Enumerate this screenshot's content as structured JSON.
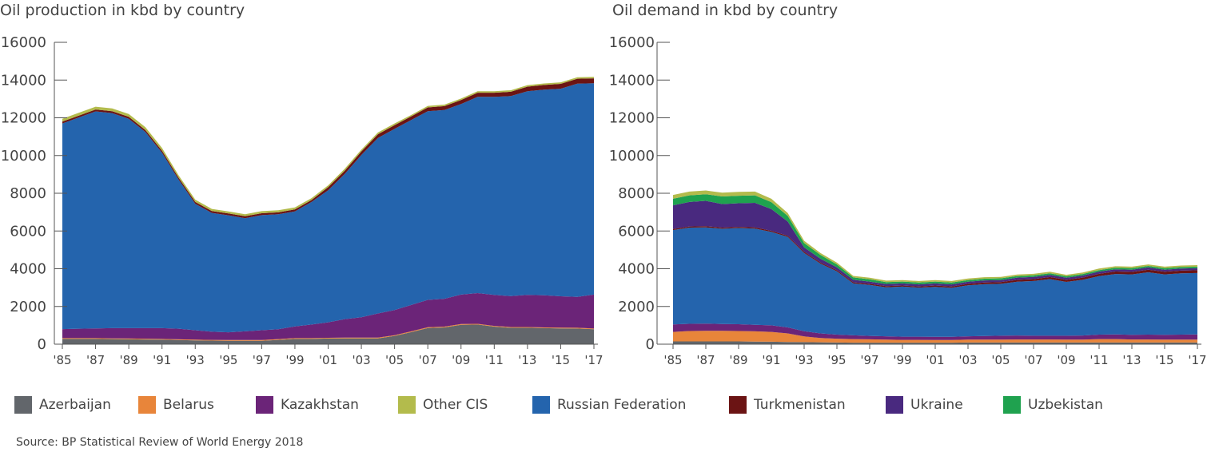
{
  "source": "Source: BP Statistical Review of World Energy 2018",
  "legend": [
    {
      "name": "Azerbaijan",
      "color": "#62666b"
    },
    {
      "name": "Belarus",
      "color": "#e8853a"
    },
    {
      "name": "Kazakhstan",
      "color": "#6b2478"
    },
    {
      "name": "Other CIS",
      "color": "#b3bb4c"
    },
    {
      "name": "Russian Federation",
      "color": "#2464ad"
    },
    {
      "name": "Turkmenistan",
      "color": "#6b1414"
    },
    {
      "name": "Ukraine",
      "color": "#49297f"
    },
    {
      "name": "Uzbekistan",
      "color": "#1fa24f"
    }
  ],
  "chart_data": [
    {
      "type": "area",
      "stacked": true,
      "title": "Oil production in kbd by country",
      "xlabel": "",
      "ylabel": "",
      "ylim": [
        0,
        16000
      ],
      "yticks": [
        0,
        2000,
        4000,
        6000,
        8000,
        10000,
        12000,
        14000,
        16000
      ],
      "x": [
        1985,
        1986,
        1987,
        1988,
        1989,
        1990,
        1991,
        1992,
        1993,
        1994,
        1995,
        1996,
        1997,
        1998,
        1999,
        2000,
        2001,
        2002,
        2003,
        2004,
        2005,
        2006,
        2007,
        2008,
        2009,
        2010,
        2011,
        2012,
        2013,
        2014,
        2015,
        2016,
        2017
      ],
      "xtick_labels": [
        "'85",
        "'87",
        "'89",
        "'91",
        "'93",
        "'95",
        "'97",
        "'99",
        "'01",
        "'03",
        "'05",
        "'07",
        "'09",
        "'11",
        "'13",
        "'15",
        "'17"
      ],
      "series": [
        {
          "name": "Azerbaijan",
          "values": [
            280,
            280,
            280,
            270,
            260,
            250,
            240,
            220,
            200,
            190,
            180,
            180,
            180,
            230,
            280,
            280,
            300,
            310,
            310,
            310,
            440,
            640,
            860,
            890,
            1030,
            1040,
            930,
            870,
            870,
            850,
            840,
            830,
            790
          ]
        },
        {
          "name": "Belarus",
          "values": [
            40,
            40,
            40,
            40,
            40,
            40,
            40,
            40,
            40,
            40,
            40,
            40,
            40,
            40,
            40,
            40,
            40,
            40,
            40,
            40,
            40,
            40,
            40,
            40,
            40,
            40,
            40,
            40,
            40,
            40,
            40,
            40,
            40
          ]
        },
        {
          "name": "Kazakhstan",
          "values": [
            480,
            500,
            520,
            540,
            550,
            560,
            570,
            560,
            500,
            430,
            410,
            460,
            520,
            520,
            620,
            720,
            820,
            980,
            1080,
            1280,
            1330,
            1400,
            1450,
            1480,
            1560,
            1630,
            1640,
            1640,
            1700,
            1700,
            1660,
            1640,
            1800
          ]
        },
        {
          "name": "Russian Federation",
          "values": [
            10900,
            11200,
            11500,
            11400,
            11100,
            10400,
            9300,
            7900,
            6700,
            6300,
            6200,
            6000,
            6100,
            6100,
            6100,
            6500,
            7000,
            7700,
            8600,
            9300,
            9600,
            9800,
            10000,
            10000,
            10100,
            10400,
            10500,
            10600,
            10800,
            10900,
            11000,
            11300,
            11200
          ]
        },
        {
          "name": "Turkmenistan",
          "values": [
            100,
            100,
            100,
            100,
            100,
            100,
            100,
            100,
            100,
            100,
            100,
            100,
            100,
            100,
            100,
            100,
            160,
            170,
            190,
            200,
            200,
            190,
            200,
            210,
            210,
            220,
            220,
            230,
            240,
            250,
            260,
            260,
            260
          ]
        },
        {
          "name": "Other CIS",
          "values": [
            150,
            150,
            150,
            150,
            150,
            150,
            150,
            130,
            120,
            110,
            110,
            110,
            110,
            110,
            110,
            100,
            100,
            100,
            90,
            90,
            90,
            80,
            80,
            80,
            80,
            80,
            80,
            80,
            80,
            80,
            80,
            80,
            80
          ]
        },
        {
          "name": "Ukraine",
          "values": [
            0,
            0,
            0,
            0,
            0,
            0,
            0,
            0,
            0,
            0,
            0,
            0,
            0,
            0,
            0,
            0,
            0,
            0,
            0,
            0,
            0,
            0,
            0,
            0,
            0,
            0,
            0,
            0,
            0,
            0,
            0,
            0,
            0
          ]
        },
        {
          "name": "Uzbekistan",
          "values": [
            0,
            0,
            0,
            0,
            0,
            0,
            0,
            0,
            0,
            0,
            0,
            0,
            0,
            0,
            0,
            0,
            0,
            0,
            0,
            0,
            0,
            0,
            0,
            0,
            0,
            0,
            0,
            0,
            0,
            0,
            0,
            0,
            0
          ]
        }
      ]
    },
    {
      "type": "area",
      "stacked": true,
      "title": "Oil demand in kbd by country",
      "xlabel": "",
      "ylabel": "",
      "ylim": [
        0,
        16000
      ],
      "yticks": [
        0,
        2000,
        4000,
        6000,
        8000,
        10000,
        12000,
        14000,
        16000
      ],
      "x": [
        1985,
        1986,
        1987,
        1988,
        1989,
        1990,
        1991,
        1992,
        1993,
        1994,
        1995,
        1996,
        1997,
        1998,
        1999,
        2000,
        2001,
        2002,
        2003,
        2004,
        2005,
        2006,
        2007,
        2008,
        2009,
        2010,
        2011,
        2012,
        2013,
        2014,
        2015,
        2016,
        2017
      ],
      "xtick_labels": [
        "'85",
        "'87",
        "'89",
        "'91",
        "'93",
        "'95",
        "'97",
        "'99",
        "'01",
        "'03",
        "'05",
        "'07",
        "'09",
        "'11",
        "'13",
        "'15",
        "'17"
      ],
      "series": [
        {
          "name": "Azerbaijan",
          "values": [
            150,
            150,
            150,
            150,
            150,
            140,
            130,
            120,
            110,
            100,
            90,
            80,
            80,
            80,
            80,
            80,
            80,
            80,
            90,
            90,
            90,
            90,
            90,
            90,
            90,
            90,
            90,
            90,
            90,
            90,
            90,
            90,
            90
          ]
        },
        {
          "name": "Belarus",
          "values": [
            500,
            550,
            560,
            560,
            550,
            540,
            520,
            450,
            300,
            230,
            200,
            190,
            180,
            160,
            150,
            150,
            140,
            140,
            150,
            150,
            150,
            160,
            160,
            160,
            150,
            150,
            180,
            180,
            160,
            160,
            150,
            150,
            150
          ]
        },
        {
          "name": "Kazakhstan",
          "values": [
            400,
            380,
            380,
            360,
            360,
            350,
            350,
            320,
            280,
            240,
            220,
            200,
            180,
            180,
            170,
            170,
            170,
            170,
            180,
            190,
            210,
            210,
            200,
            200,
            210,
            220,
            240,
            250,
            250,
            260,
            260,
            270,
            280
          ]
        },
        {
          "name": "Russian Federation",
          "values": [
            5000,
            5100,
            5100,
            5050,
            5100,
            5100,
            4950,
            4800,
            4150,
            3700,
            3350,
            2750,
            2700,
            2600,
            2650,
            2600,
            2650,
            2600,
            2700,
            2750,
            2750,
            2850,
            2900,
            3000,
            2850,
            2950,
            3100,
            3200,
            3200,
            3300,
            3200,
            3250,
            3250
          ]
        },
        {
          "name": "Turkmenistan",
          "values": [
            60,
            60,
            60,
            60,
            60,
            60,
            60,
            60,
            60,
            60,
            60,
            60,
            60,
            60,
            60,
            60,
            70,
            70,
            80,
            90,
            90,
            100,
            100,
            110,
            110,
            120,
            120,
            130,
            130,
            140,
            140,
            140,
            150
          ]
        },
        {
          "name": "Other CIS",
          "values": [
            200,
            200,
            200,
            200,
            200,
            200,
            180,
            150,
            120,
            100,
            90,
            80,
            80,
            80,
            80,
            80,
            80,
            80,
            80,
            80,
            80,
            80,
            80,
            80,
            80,
            80,
            80,
            80,
            80,
            80,
            80,
            80,
            80
          ]
        },
        {
          "name": "Ukraine",
          "values": [
            1250,
            1300,
            1350,
            1250,
            1250,
            1300,
            1150,
            750,
            230,
            200,
            150,
            130,
            120,
            110,
            110,
            110,
            110,
            110,
            110,
            110,
            110,
            120,
            120,
            120,
            110,
            110,
            120,
            120,
            120,
            120,
            110,
            110,
            110
          ]
        },
        {
          "name": "Uzbekistan",
          "values": [
            350,
            350,
            350,
            400,
            400,
            400,
            370,
            300,
            230,
            200,
            160,
            130,
            120,
            100,
            100,
            100,
            100,
            100,
            90,
            90,
            90,
            80,
            80,
            80,
            80,
            80,
            80,
            80,
            80,
            80,
            80,
            80,
            80
          ]
        }
      ]
    }
  ]
}
